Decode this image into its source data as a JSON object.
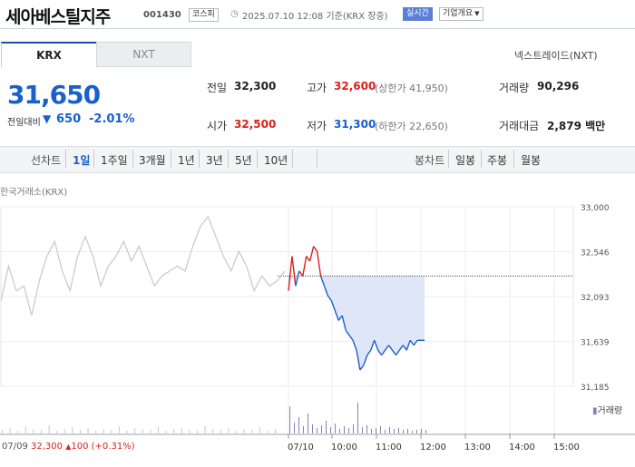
{
  "header": {
    "stock_name": "세아베스틸지주",
    "stock_code": "001430",
    "market": "코스피",
    "datetime": "2025.07.10 12:08 기준(KRX 장중)",
    "realtime_badge": "실시간",
    "company_info": "기업개요"
  },
  "tabs": [
    "KRX",
    "NXT"
  ],
  "nextrade_link": "넥스트레이드(NXT)",
  "quote": {
    "price": "31,650",
    "change_label": "전일대비",
    "change_arrow": "▼",
    "change": "650",
    "change_pct": "-2.01%"
  },
  "stats": {
    "prev_label": "전일",
    "prev": "32,300",
    "high_label": "고가",
    "high": "32,600",
    "upper_limit": "(상한가 41,950)",
    "volume_label": "거래량",
    "volume": "90,296",
    "open_label": "시가",
    "open": "32,500",
    "low_label": "저가",
    "low": "31,300",
    "lower_limit": "(하한가 22,650)",
    "amount_label": "거래대금",
    "amount": "2,879 백만"
  },
  "periods": {
    "line_label": "선차트",
    "line_items": [
      "1일",
      "1주일",
      "3개월",
      "1년",
      "3년",
      "5년",
      "10년"
    ],
    "candle_label": "봉차트",
    "candle_items": [
      "일봉",
      "주봉",
      "월봉"
    ]
  },
  "chart_source": "한국거래소(KRX)",
  "volume_legend": "거래량",
  "prev_day": {
    "date": "07/09",
    "close": "32,300",
    "arrow": "▲",
    "change": "100",
    "pct": "(+0.31%)"
  },
  "colors": {
    "down": "#1a60c8",
    "up": "#d9211c",
    "prev_line": "#c8c8c8",
    "area_fill": "#dfe6f7"
  },
  "chart_data": {
    "type": "line",
    "y_ticks": [
      "33,000",
      "32,546",
      "32,093",
      "31,639",
      "31,185"
    ],
    "y_range": [
      31185,
      33000
    ],
    "x_ticks": [
      "07/10",
      "10:00",
      "11:00",
      "12:00",
      "13:00",
      "14:00",
      "15:00"
    ],
    "reference_price": 32300,
    "grid": true,
    "series": [
      {
        "name": "07/09",
        "values": [
          32050,
          32400,
          32150,
          32200,
          31900,
          32250,
          32500,
          32650,
          32350,
          32150,
          32500,
          32700,
          32500,
          32200,
          32400,
          32500,
          32650,
          32450,
          32600,
          32400,
          32200,
          32300,
          32350,
          32400,
          32350,
          32600,
          32800,
          32900,
          32700,
          32500,
          32350,
          32550,
          32400,
          32150,
          32300,
          32200,
          32250,
          32350
        ]
      },
      {
        "name": "07/10",
        "times": [
          "09:00",
          "09:05",
          "09:10",
          "09:15",
          "09:20",
          "09:25",
          "09:30",
          "09:35",
          "09:40",
          "09:45",
          "09:50",
          "09:55",
          "10:00",
          "10:05",
          "10:10",
          "10:15",
          "10:20",
          "10:25",
          "10:30",
          "10:35",
          "10:40",
          "10:45",
          "10:50",
          "10:55",
          "11:00",
          "11:05",
          "11:10",
          "11:15",
          "11:20",
          "11:25",
          "11:30",
          "11:35",
          "11:40",
          "11:45",
          "11:50",
          "11:55",
          "12:00",
          "12:05",
          "12:08"
        ],
        "values": [
          32150,
          32500,
          32200,
          32350,
          32300,
          32500,
          32450,
          32600,
          32550,
          32300,
          32200,
          32100,
          32050,
          31950,
          31850,
          31900,
          31750,
          31700,
          31650,
          31550,
          31350,
          31400,
          31500,
          31550,
          31650,
          31550,
          31500,
          31550,
          31600,
          31550,
          31500,
          31550,
          31600,
          31550,
          31650,
          31600,
          31650,
          31650,
          31650
        ]
      }
    ]
  }
}
